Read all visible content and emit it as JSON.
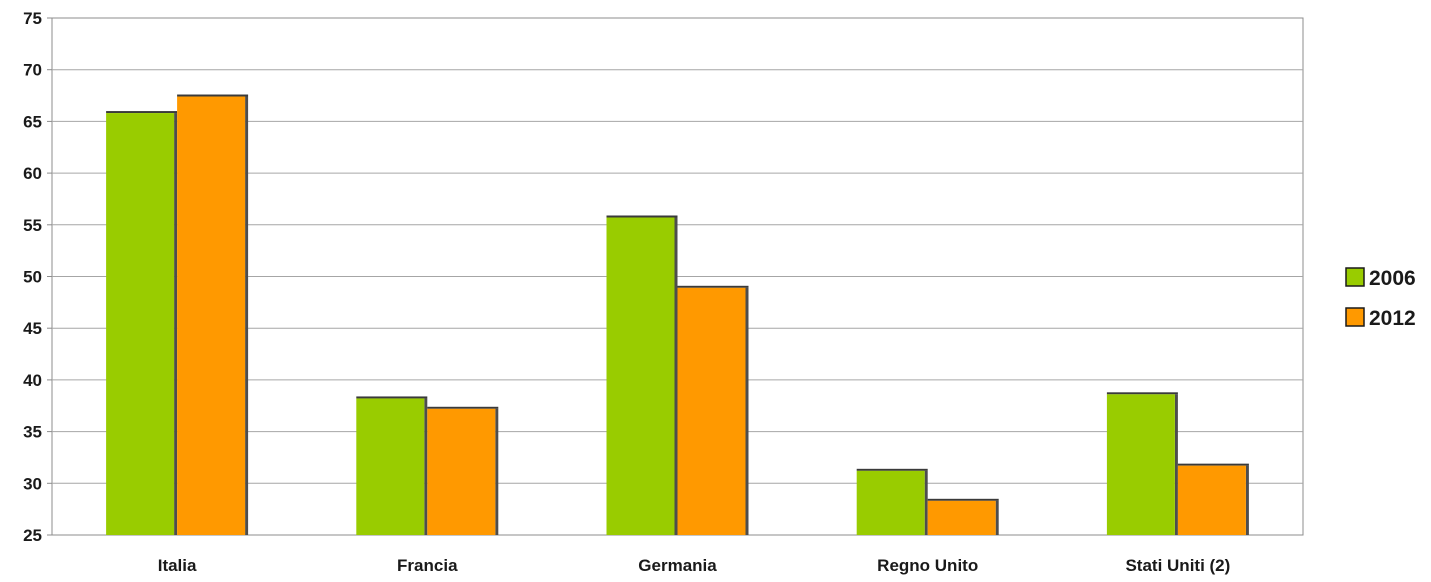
{
  "chart_data": {
    "type": "bar",
    "title": "",
    "xlabel": "",
    "ylabel": "",
    "categories": [
      "Italia",
      "Francia",
      "Germania",
      "Regno Unito",
      "Stati Uniti (2)"
    ],
    "series": [
      {
        "name": "2006",
        "color": "#99cc00",
        "values": [
          66.0,
          38.4,
          55.9,
          31.4,
          38.8
        ]
      },
      {
        "name": "2012",
        "color": "#ff9900",
        "values": [
          67.6,
          37.4,
          49.1,
          28.5,
          31.9
        ]
      }
    ],
    "ylim": [
      25,
      75
    ],
    "yticks": [
      "75",
      "70",
      "65",
      "60",
      "55",
      "50",
      "45",
      "40",
      "35",
      "30",
      "25"
    ],
    "grid": true,
    "legend": "right"
  }
}
